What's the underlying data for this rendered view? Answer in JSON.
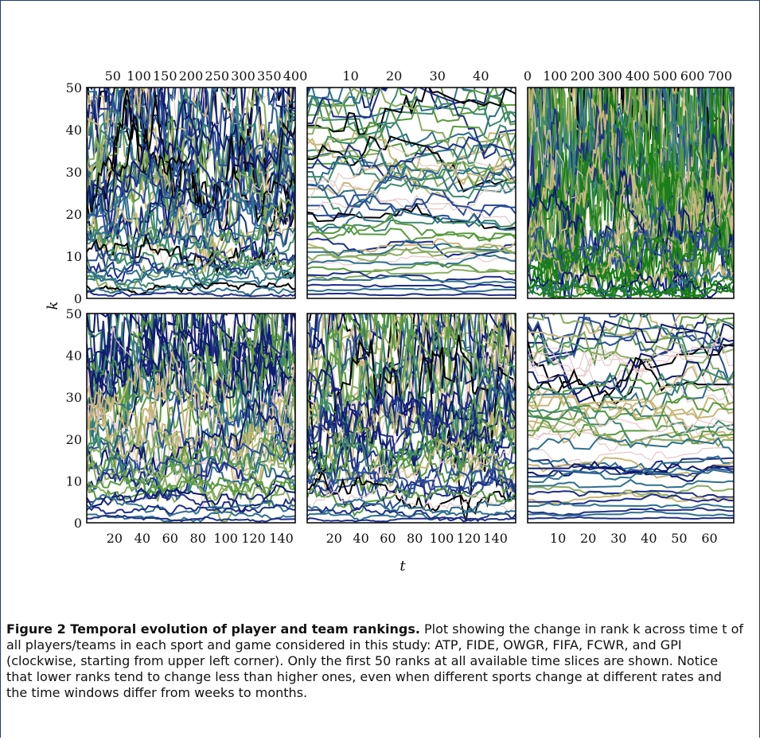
{
  "caption": {
    "title": "Figure 2 Temporal evolution of player and team rankings.",
    "body": "Plot showing the change in rank k across time t of all players/teams in each sport and game considered in this study: ATP, FIDE, OWGR, FIFA, FCWR, and GPI (clockwise, starting from upper left corner). Only the first 50 ranks at all available time slices are shown. Notice that lower ranks tend to change less than higher ones, even when different sports change at different rates and the time windows differ from weeks to months."
  },
  "axes": {
    "xlabel": "t",
    "ylabel": "k"
  },
  "colors": {
    "palette": [
      "#0d1b6e",
      "#1f2f86",
      "#2b4f96",
      "#2e6f8e",
      "#3d8a6a",
      "#5a9a3e",
      "#8aac60",
      "#c8b77a",
      "#e7c7c7",
      "#000000",
      "#1a7d1a"
    ]
  },
  "chart_data": [
    {
      "type": "line",
      "panel": "top-left",
      "xlim": [
        0,
        400
      ],
      "ylim": [
        0,
        50
      ],
      "x_ticks": [
        "50",
        "100",
        "150",
        "200",
        "250",
        "300",
        "350",
        "400"
      ],
      "y_ticks": [
        "0",
        "10",
        "20",
        "30",
        "40",
        "50"
      ],
      "x_tick_position": "top",
      "density": "dense",
      "series_count": 50
    },
    {
      "type": "line",
      "panel": "top-middle",
      "xlim": [
        0,
        48
      ],
      "ylim": [
        0,
        50
      ],
      "x_ticks": [
        "10",
        "20",
        "30",
        "40"
      ],
      "y_ticks": [],
      "x_tick_position": "top",
      "density": "sparse",
      "series_count": 50
    },
    {
      "type": "line",
      "panel": "top-right",
      "xlim": [
        0,
        750
      ],
      "ylim": [
        0,
        50
      ],
      "x_ticks": [
        "0",
        "100",
        "200",
        "300",
        "400",
        "500",
        "600",
        "700"
      ],
      "y_ticks": [],
      "x_tick_position": "top",
      "density": "very dense",
      "series_count": 50
    },
    {
      "type": "line",
      "panel": "bottom-left",
      "xlim": [
        0,
        150
      ],
      "ylim": [
        0,
        50
      ],
      "x_ticks": [
        "20",
        "40",
        "60",
        "80",
        "100",
        "120",
        "140"
      ],
      "y_ticks": [
        "0",
        "10",
        "20",
        "30",
        "40",
        "50"
      ],
      "x_tick_position": "bottom",
      "density": "dense",
      "series_count": 50
    },
    {
      "type": "line",
      "panel": "bottom-middle",
      "xlim": [
        0,
        155
      ],
      "ylim": [
        0,
        50
      ],
      "x_ticks": [
        "20",
        "40",
        "60",
        "80",
        "100",
        "120",
        "140"
      ],
      "y_ticks": [],
      "x_tick_position": "bottom",
      "density": "dense",
      "series_count": 50
    },
    {
      "type": "line",
      "panel": "bottom-right",
      "xlim": [
        0,
        68
      ],
      "ylim": [
        0,
        50
      ],
      "x_ticks": [
        "10",
        "20",
        "30",
        "40",
        "50",
        "60"
      ],
      "y_ticks": [],
      "x_tick_position": "bottom",
      "density": "sparse",
      "series_count": 50
    }
  ]
}
